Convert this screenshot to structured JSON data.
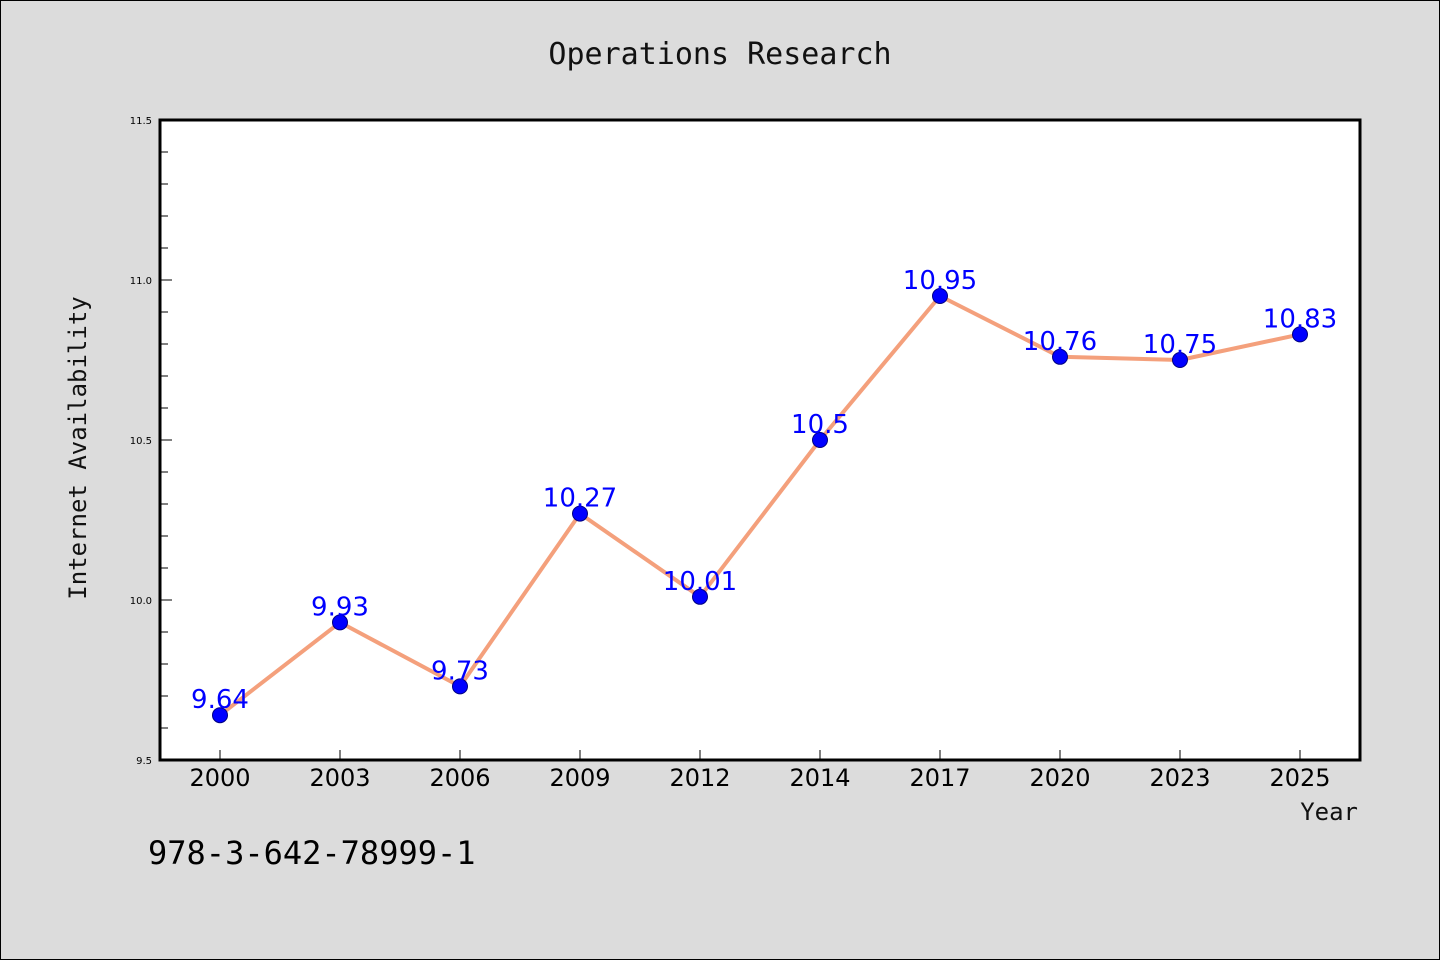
{
  "chart_data": {
    "type": "line",
    "title": "Operations Research",
    "xlabel": "Year",
    "ylabel": "Internet Availability",
    "categories": [
      "2000",
      "2003",
      "2006",
      "2009",
      "2012",
      "2014",
      "2017",
      "2020",
      "2023",
      "2025"
    ],
    "series": [
      {
        "values": [
          9.64,
          9.93,
          9.73,
          10.27,
          10.01,
          10.5,
          10.95,
          10.76,
          10.75,
          10.83
        ],
        "data_labels": [
          "9.64",
          "9.93",
          "9.73",
          "10.27",
          "10.01",
          "10.5",
          "10.95",
          "10.76",
          "10.75",
          "10.83"
        ],
        "line_color": "#f4a07c",
        "marker_color": "#0000ff"
      }
    ],
    "ylim": [
      9.5,
      11.5
    ],
    "y_ticks": [
      "9.5",
      "10.0",
      "10.5",
      "11.0",
      "11.5"
    ],
    "y_minor_step": 0.1,
    "label_color": "#0000ff",
    "grid": false,
    "legend": "none"
  },
  "footer": {
    "isbn": "978-3-642-78999-1"
  }
}
